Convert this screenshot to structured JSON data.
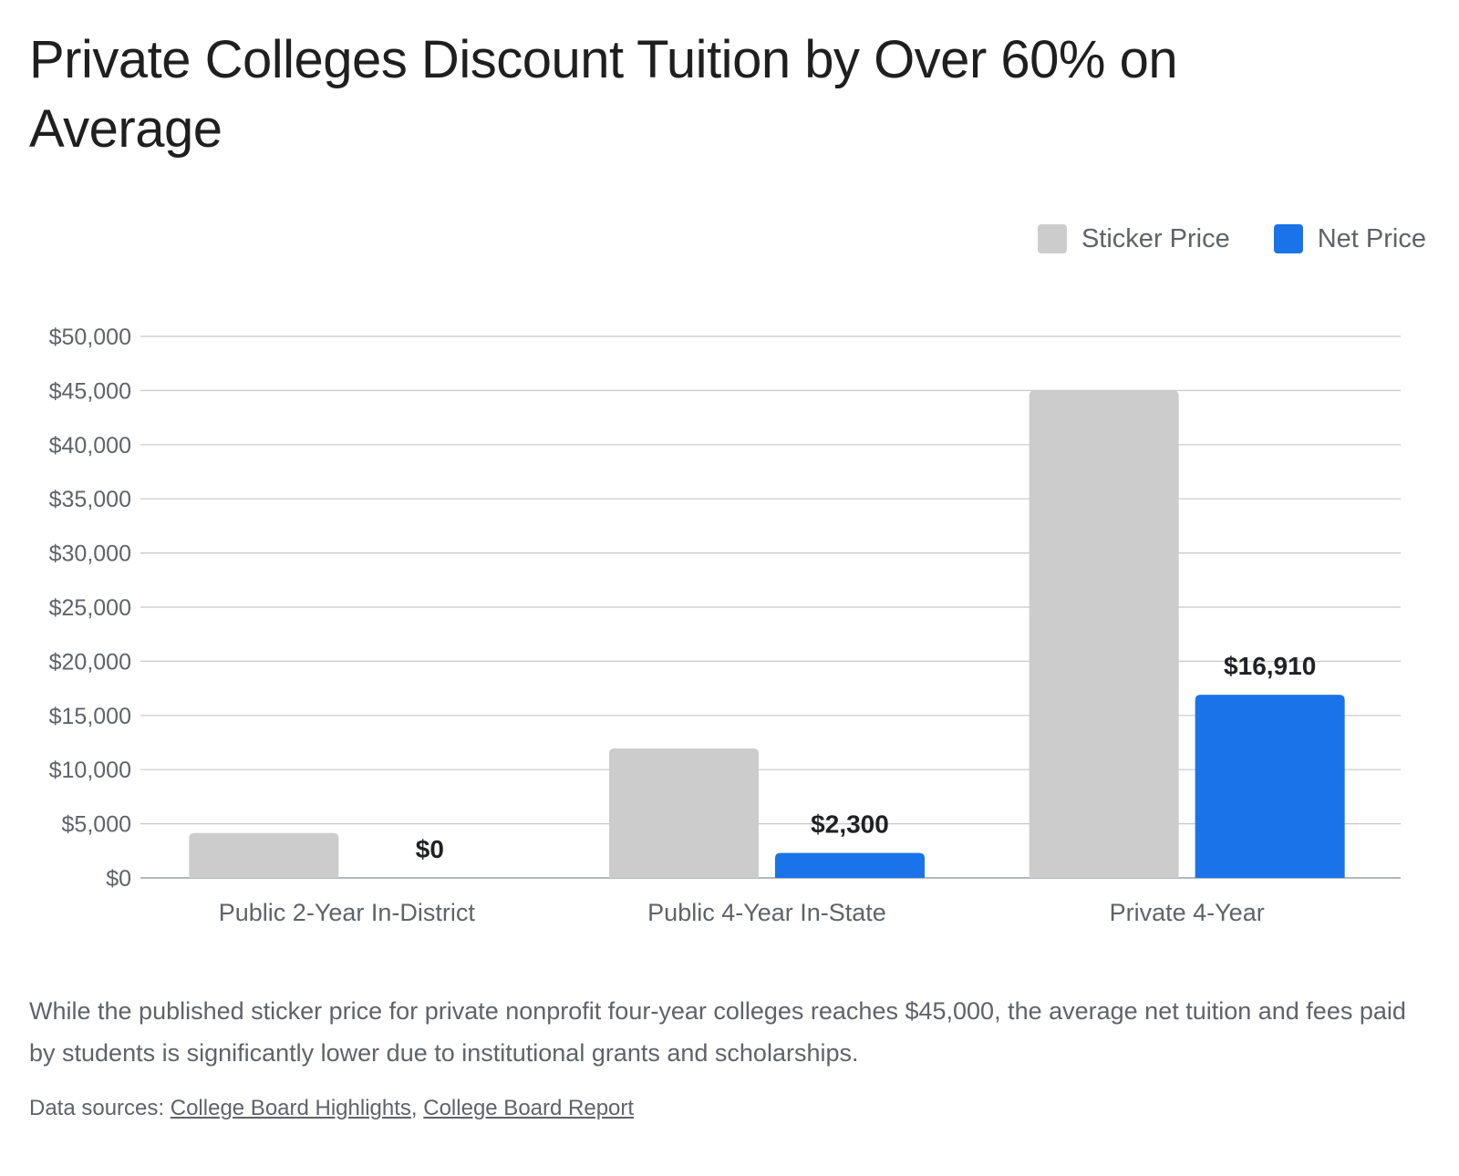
{
  "title": "Private Colleges Discount Tuition by Over 60% on Average",
  "description": "While the published sticker price for private nonprofit four-year colleges reaches $45,000, the average net tuition and fees paid by students is significantly lower due to institutional grants and scholarships.",
  "sources": {
    "prefix": "Data sources:",
    "separator": ",",
    "links": [
      "College Board Highlights",
      "College Board Report"
    ]
  },
  "chart_data": {
    "type": "bar",
    "title": "Private Colleges Discount Tuition by Over 60% on Average",
    "categories": [
      "Public 2-Year In-District",
      "Public 4-Year In-State",
      "Private 4-Year"
    ],
    "series": [
      {
        "name": "Sticker Price",
        "color": "#cccccc",
        "values": [
          4150,
          11950,
          45000
        ],
        "labels": [
          null,
          null,
          null
        ]
      },
      {
        "name": "Net Price",
        "color": "#1a73e8",
        "values": [
          0,
          2300,
          16910
        ],
        "labels": [
          "$0",
          "$2,300",
          "$16,910"
        ]
      }
    ],
    "yticks": [
      "$0",
      "$5,000",
      "$10,000",
      "$15,000",
      "$20,000",
      "$25,000",
      "$30,000",
      "$35,000",
      "$40,000",
      "$45,000",
      "$50,000"
    ],
    "ylim": [
      0,
      50000
    ],
    "xlabel": "",
    "ylabel": "",
    "grid": true,
    "legend_position": "top-right"
  }
}
